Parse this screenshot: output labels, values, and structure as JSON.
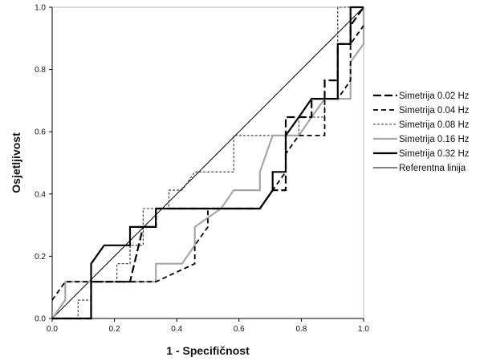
{
  "chart_data": {
    "type": "line",
    "title": "",
    "xlabel": "1 - Specifičnost",
    "ylabel": "Osjetljivost",
    "xlim": [
      0,
      1
    ],
    "ylim": [
      0,
      1
    ],
    "x_ticks": [
      "0.0",
      "0.2",
      "0.4",
      "0.6",
      "0.8",
      "1.0"
    ],
    "y_ticks": [
      "0.0",
      "0.2",
      "0.4",
      "0.6",
      "0.8",
      "1.0"
    ],
    "grid": false,
    "legend_position": "right",
    "series": [
      {
        "name": "Simetrija 0.02 Hz",
        "color": "#000000",
        "dash": "long-dash",
        "points": [
          [
            0,
            0
          ],
          [
            0.125,
            0
          ],
          [
            0.125,
            0.118
          ],
          [
            0.25,
            0.118
          ],
          [
            0.25,
            0.118
          ],
          [
            0.292,
            0.294
          ],
          [
            0.333,
            0.294
          ],
          [
            0.333,
            0.353
          ],
          [
            0.667,
            0.353
          ],
          [
            0.667,
            0.353
          ],
          [
            0.708,
            0.412
          ],
          [
            0.75,
            0.412
          ],
          [
            0.75,
            0.647
          ],
          [
            0.833,
            0.647
          ],
          [
            0.833,
            0.706
          ],
          [
            0.875,
            0.706
          ],
          [
            0.875,
            0.765
          ],
          [
            0.917,
            0.765
          ],
          [
            0.917,
            0.882
          ],
          [
            0.958,
            0.882
          ],
          [
            0.958,
            0.941
          ],
          [
            1,
            1
          ]
        ]
      },
      {
        "name": "Simetrija 0.04 Hz",
        "color": "#000000",
        "dash": "dash",
        "points": [
          [
            0,
            0.059
          ],
          [
            0.042,
            0.118
          ],
          [
            0.083,
            0.118
          ],
          [
            0.333,
            0.118
          ],
          [
            0.458,
            0.176
          ],
          [
            0.458,
            0.235
          ],
          [
            0.5,
            0.294
          ],
          [
            0.5,
            0.353
          ],
          [
            0.667,
            0.353
          ],
          [
            0.708,
            0.412
          ],
          [
            0.75,
            0.471
          ],
          [
            0.75,
            0.529
          ],
          [
            0.792,
            0.588
          ],
          [
            0.875,
            0.588
          ],
          [
            0.875,
            0.706
          ],
          [
            0.917,
            0.706
          ],
          [
            0.958,
            0.765
          ],
          [
            0.958,
            0.882
          ],
          [
            1,
            0.941
          ]
        ]
      },
      {
        "name": "Simetrija 0.08 Hz",
        "color": "#333333",
        "dash": "fine-dash",
        "points": [
          [
            0,
            0
          ],
          [
            0.083,
            0
          ],
          [
            0.083,
            0.059
          ],
          [
            0.125,
            0.059
          ],
          [
            0.125,
            0.118
          ],
          [
            0.208,
            0.118
          ],
          [
            0.208,
            0.176
          ],
          [
            0.25,
            0.176
          ],
          [
            0.25,
            0.235
          ],
          [
            0.292,
            0.235
          ],
          [
            0.292,
            0.353
          ],
          [
            0.375,
            0.353
          ],
          [
            0.375,
            0.412
          ],
          [
            0.417,
            0.412
          ],
          [
            0.458,
            0.471
          ],
          [
            0.583,
            0.471
          ],
          [
            0.583,
            0.588
          ],
          [
            0.792,
            0.588
          ],
          [
            0.792,
            0.647
          ],
          [
            0.875,
            0.647
          ],
          [
            0.875,
            0.706
          ],
          [
            0.917,
            0.706
          ],
          [
            0.917,
            1
          ],
          [
            1,
            1
          ]
        ]
      },
      {
        "name": "Simetrija 0.16 Hz",
        "color": "#a6a6a6",
        "dash": "solid",
        "points": [
          [
            0,
            0
          ],
          [
            0.042,
            0.059
          ],
          [
            0.042,
            0.118
          ],
          [
            0.083,
            0.118
          ],
          [
            0.333,
            0.118
          ],
          [
            0.333,
            0.176
          ],
          [
            0.417,
            0.176
          ],
          [
            0.458,
            0.235
          ],
          [
            0.458,
            0.294
          ],
          [
            0.542,
            0.353
          ],
          [
            0.583,
            0.412
          ],
          [
            0.667,
            0.412
          ],
          [
            0.667,
            0.471
          ],
          [
            0.708,
            0.588
          ],
          [
            0.792,
            0.588
          ],
          [
            0.833,
            0.647
          ],
          [
            0.875,
            0.706
          ],
          [
            0.958,
            0.706
          ],
          [
            0.958,
            0.824
          ],
          [
            1,
            0.882
          ],
          [
            1,
            1
          ]
        ]
      },
      {
        "name": "Simetrija 0.32 Hz",
        "color": "#000000",
        "dash": "solid-thick",
        "points": [
          [
            0,
            0
          ],
          [
            0.125,
            0
          ],
          [
            0.125,
            0.176
          ],
          [
            0.167,
            0.235
          ],
          [
            0.25,
            0.235
          ],
          [
            0.25,
            0.294
          ],
          [
            0.333,
            0.294
          ],
          [
            0.333,
            0.353
          ],
          [
            0.667,
            0.353
          ],
          [
            0.708,
            0.412
          ],
          [
            0.708,
            0.471
          ],
          [
            0.75,
            0.471
          ],
          [
            0.75,
            0.588
          ],
          [
            0.792,
            0.647
          ],
          [
            0.833,
            0.706
          ],
          [
            0.917,
            0.706
          ],
          [
            0.917,
            0.882
          ],
          [
            0.958,
            0.882
          ],
          [
            0.958,
            1
          ],
          [
            1,
            1
          ]
        ]
      },
      {
        "name": "Referentna linija",
        "color": "#000000",
        "dash": "solid-thin",
        "points": [
          [
            0,
            0
          ],
          [
            1,
            1
          ]
        ]
      }
    ]
  }
}
